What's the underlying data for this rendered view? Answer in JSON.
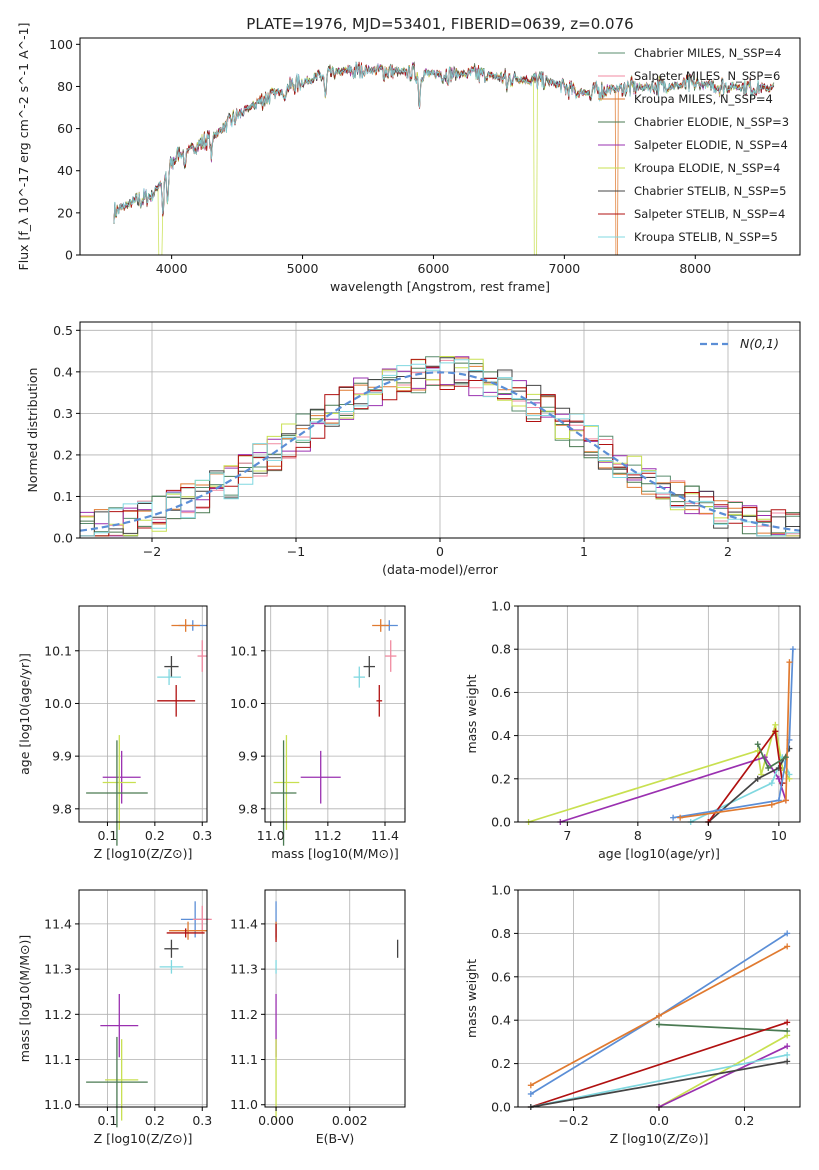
{
  "title": "PLATE=1976, MJD=53401, FIBERID=0639, z=0.076",
  "palette": {
    "Chabrier MILES": "#5a8c6e",
    "Salpeter MILES": "#f08aa0",
    "Kroupa MILES": "#e07a30",
    "Chabrier ELODIE": "#4a7a52",
    "Salpeter ELODIE": "#9a30b0",
    "Kroupa ELODIE": "#c8e050",
    "Chabrier STELIB": "#444444",
    "Salpeter STELIB": "#b01010",
    "Kroupa STELIB": "#80d8e0",
    "blue": "#5b8ed6"
  },
  "chart_data": [
    {
      "type": "line",
      "id": "spectrum",
      "xlabel": "wavelength [Angstrom, rest frame]",
      "ylabel": "Flux [f_λ 10^-17 erg cm^-2 s^-1 A^-1]",
      "xlim": [
        3300,
        8800
      ],
      "ylim": [
        0,
        103
      ],
      "xticks": [
        4000,
        5000,
        6000,
        7000,
        8000
      ],
      "yticks": [
        0,
        20,
        40,
        60,
        80,
        100
      ],
      "legend": [
        {
          "label": "Chabrier MILES, N_SSP=4",
          "color": "#5a8c6e"
        },
        {
          "label": "Salpeter MILES, N_SSP=6",
          "color": "#f08aa0"
        },
        {
          "label": "Kroupa MILES, N_SSP=4",
          "color": "#e07a30"
        },
        {
          "label": "Chabrier ELODIE, N_SSP=3",
          "color": "#4a7a52"
        },
        {
          "label": "Salpeter ELODIE, N_SSP=4",
          "color": "#9a30b0"
        },
        {
          "label": "Kroupa ELODIE, N_SSP=4",
          "color": "#c8e050"
        },
        {
          "label": "Chabrier STELIB, N_SSP=5",
          "color": "#444444"
        },
        {
          "label": "Salpeter STELIB, N_SSP=4",
          "color": "#b01010"
        },
        {
          "label": "Kroupa STELIB, N_SSP=5",
          "color": "#80d8e0"
        }
      ],
      "legend_position": "top-right",
      "continuum": [
        [
          3550,
          20
        ],
        [
          3700,
          25
        ],
        [
          3850,
          28
        ],
        [
          3950,
          38
        ],
        [
          4050,
          48
        ],
        [
          4200,
          52
        ],
        [
          4350,
          58
        ],
        [
          4500,
          66
        ],
        [
          4700,
          74
        ],
        [
          4900,
          80
        ],
        [
          5100,
          84
        ],
        [
          5300,
          87
        ],
        [
          5500,
          88
        ],
        [
          5700,
          87
        ],
        [
          6000,
          86
        ],
        [
          6300,
          86
        ],
        [
          6600,
          84
        ],
        [
          6900,
          82
        ],
        [
          7100,
          77
        ],
        [
          7400,
          79
        ],
        [
          7700,
          80
        ],
        [
          8000,
          81
        ],
        [
          8300,
          80
        ],
        [
          8600,
          79
        ]
      ],
      "absorption_lines": [
        [
          3934,
          18
        ],
        [
          3969,
          16
        ],
        [
          4101,
          8
        ],
        [
          4304,
          10
        ],
        [
          4861,
          6
        ],
        [
          5175,
          12
        ],
        [
          5893,
          15
        ],
        [
          6563,
          5
        ],
        [
          7200,
          4
        ]
      ],
      "grid": false
    },
    {
      "type": "step",
      "id": "residual-hist",
      "xlabel": "(data-model)/error",
      "ylabel": "Normed distribution",
      "xlim": [
        -2.5,
        2.5
      ],
      "ylim": [
        0,
        0.52
      ],
      "xticks": [
        -2,
        -1,
        0,
        1,
        2
      ],
      "yticks": [
        0.0,
        0.1,
        0.2,
        0.3,
        0.4,
        0.5
      ],
      "reference_curve": {
        "label": "N(0,1)",
        "color": "#5b8ed6"
      },
      "legend_position": "top-right",
      "grid": true
    },
    {
      "type": "errorbar",
      "id": "age-vs-Z",
      "xlabel": "Z [log10(Z/Z⊙)]",
      "ylabel": "age [log10(age/yr)]",
      "xlim": [
        0.04,
        0.31
      ],
      "ylim": [
        9.775,
        10.185
      ],
      "xticks": [
        0.1,
        0.2,
        0.3
      ],
      "yticks": [
        9.8,
        9.9,
        10.0,
        10.1
      ],
      "points": [
        {
          "x": 0.28,
          "y": 10.148,
          "xe": 0.03,
          "ye": 0.01,
          "c": "#5b8ed6"
        },
        {
          "x": 0.265,
          "y": 10.148,
          "xe": 0.03,
          "ye": 0.012,
          "c": "#e07a30"
        },
        {
          "x": 0.3,
          "y": 10.09,
          "xe": 0.01,
          "ye": 0.03,
          "c": "#f08aa0"
        },
        {
          "x": 0.235,
          "y": 10.07,
          "xe": 0.015,
          "ye": 0.02,
          "c": "#444444"
        },
        {
          "x": 0.23,
          "y": 10.05,
          "xe": 0.025,
          "ye": 0.015,
          "c": "#80d8e0"
        },
        {
          "x": 0.245,
          "y": 10.005,
          "xe": 0.04,
          "ye": 0.03,
          "c": "#b01010"
        },
        {
          "x": 0.13,
          "y": 9.86,
          "xe": 0.04,
          "ye": 0.05,
          "c": "#9a30b0"
        },
        {
          "x": 0.125,
          "y": 9.85,
          "xe": 0.035,
          "ye": 0.09,
          "c": "#c8e050"
        },
        {
          "x": 0.12,
          "y": 9.83,
          "xe": 0.065,
          "ye": 0.1,
          "c": "#4a7a52"
        }
      ],
      "grid": true
    },
    {
      "type": "errorbar",
      "id": "age-vs-mass",
      "xlabel": "mass [log10(M/M⊙)]",
      "xlim": [
        10.98,
        11.47
      ],
      "ylim": [
        9.775,
        10.185
      ],
      "xticks": [
        11.0,
        11.2,
        11.4
      ],
      "yticks": [
        9.8,
        9.9,
        10.0,
        10.1
      ],
      "points": [
        {
          "x": 11.415,
          "y": 10.148,
          "xe": 0.03,
          "ye": 0.01,
          "c": "#5b8ed6"
        },
        {
          "x": 11.385,
          "y": 10.148,
          "xe": 0.03,
          "ye": 0.012,
          "c": "#e07a30"
        },
        {
          "x": 11.42,
          "y": 10.09,
          "xe": 0.02,
          "ye": 0.03,
          "c": "#f08aa0"
        },
        {
          "x": 11.345,
          "y": 10.07,
          "xe": 0.02,
          "ye": 0.02,
          "c": "#444444"
        },
        {
          "x": 11.31,
          "y": 10.05,
          "xe": 0.02,
          "ye": 0.02,
          "c": "#80d8e0"
        },
        {
          "x": 11.38,
          "y": 10.005,
          "xe": 0.01,
          "ye": 0.03,
          "c": "#b01010"
        },
        {
          "x": 11.175,
          "y": 9.86,
          "xe": 0.07,
          "ye": 0.05,
          "c": "#9a30b0"
        },
        {
          "x": 11.055,
          "y": 9.85,
          "xe": 0.045,
          "ye": 0.09,
          "c": "#c8e050"
        },
        {
          "x": 11.045,
          "y": 9.83,
          "xe": 0.045,
          "ye": 0.1,
          "c": "#4a7a52"
        }
      ],
      "grid": true
    },
    {
      "type": "line",
      "id": "mass-weight-vs-age",
      "xlabel": "age [log10(age/yr)]",
      "ylabel": "mass weight",
      "xlim": [
        6.3,
        10.3
      ],
      "ylim": [
        0,
        1.0
      ],
      "xticks": [
        7,
        8,
        9,
        10
      ],
      "yticks": [
        0.0,
        0.2,
        0.4,
        0.6,
        0.8,
        1.0
      ],
      "series": [
        {
          "c": "#c8e050",
          "x": [
            6.45,
            9.7,
            9.75,
            9.95,
            10.05,
            10.15
          ],
          "y": [
            0.0,
            0.33,
            0.22,
            0.45,
            0.25,
            0.2
          ]
        },
        {
          "c": "#9a30b0",
          "x": [
            6.9,
            9.8,
            10.0,
            10.1
          ],
          "y": [
            0.0,
            0.3,
            0.2,
            0.1
          ]
        },
        {
          "c": "#80d8e0",
          "x": [
            8.75,
            9.9,
            10.05,
            10.15
          ],
          "y": [
            0.0,
            0.18,
            0.3,
            0.22
          ]
        },
        {
          "c": "#444444",
          "x": [
            9.0,
            9.7,
            10.0,
            10.15
          ],
          "y": [
            0.0,
            0.2,
            0.25,
            0.34
          ]
        },
        {
          "c": "#b01010",
          "x": [
            9.0,
            9.95,
            10.05
          ],
          "y": [
            0.0,
            0.42,
            0.18
          ]
        },
        {
          "c": "#5b8ed6",
          "x": [
            8.5,
            10.0,
            10.15,
            10.2
          ],
          "y": [
            0.02,
            0.1,
            0.38,
            0.8
          ]
        },
        {
          "c": "#e07a30",
          "x": [
            8.6,
            9.9,
            10.1,
            10.15
          ],
          "y": [
            0.02,
            0.08,
            0.1,
            0.74
          ]
        },
        {
          "c": "#4a7a52",
          "x": [
            9.7,
            9.85,
            10.1
          ],
          "y": [
            0.36,
            0.25,
            0.3
          ]
        }
      ],
      "grid": true
    },
    {
      "type": "errorbar",
      "id": "mass-vs-Z",
      "xlabel": "Z [log10(Z/Z⊙)]",
      "ylabel": "mass [log10(M/M⊙)]",
      "xlim": [
        0.04,
        0.31
      ],
      "ylim": [
        10.995,
        11.475
      ],
      "xticks": [
        0.1,
        0.2,
        0.3
      ],
      "yticks": [
        11.0,
        11.1,
        11.2,
        11.3,
        11.4
      ],
      "points": [
        {
          "x": 0.285,
          "y": 11.41,
          "xe": 0.03,
          "ye": 0.04,
          "c": "#5b8ed6"
        },
        {
          "x": 0.3,
          "y": 11.41,
          "xe": 0.02,
          "ye": 0.03,
          "c": "#f08aa0"
        },
        {
          "x": 0.27,
          "y": 11.385,
          "xe": 0.04,
          "ye": 0.02,
          "c": "#e07a30"
        },
        {
          "x": 0.265,
          "y": 11.38,
          "xe": 0.04,
          "ye": 0.01,
          "c": "#b01010"
        },
        {
          "x": 0.235,
          "y": 11.345,
          "xe": 0.015,
          "ye": 0.02,
          "c": "#444444"
        },
        {
          "x": 0.235,
          "y": 11.305,
          "xe": 0.025,
          "ye": 0.015,
          "c": "#80d8e0"
        },
        {
          "x": 0.125,
          "y": 11.175,
          "xe": 0.04,
          "ye": 0.07,
          "c": "#9a30b0"
        },
        {
          "x": 0.13,
          "y": 11.055,
          "xe": 0.035,
          "ye": 0.09,
          "c": "#c8e050"
        },
        {
          "x": 0.12,
          "y": 11.05,
          "xe": 0.065,
          "ye": 0.1,
          "c": "#4a7a52"
        }
      ],
      "grid": true
    },
    {
      "type": "errorbar",
      "id": "mass-vs-ebv",
      "xlabel": "E(B-V)",
      "xlim": [
        -0.0003,
        0.0035
      ],
      "ylim": [
        10.995,
        11.475
      ],
      "xticks": [
        0.0,
        0.002
      ],
      "yticks": [
        11.0,
        11.1,
        11.2,
        11.3,
        11.4
      ],
      "points": [
        {
          "x": 0.0,
          "y": 11.41,
          "xe": 0,
          "ye": 0.04,
          "c": "#5b8ed6"
        },
        {
          "x": 0.0,
          "y": 11.385,
          "xe": 0,
          "ye": 0.02,
          "c": "#e07a30"
        },
        {
          "x": 0.0,
          "y": 11.38,
          "xe": 0,
          "ye": 0.02,
          "c": "#b01010"
        },
        {
          "x": 0.0,
          "y": 11.305,
          "xe": 0,
          "ye": 0.015,
          "c": "#80d8e0"
        },
        {
          "x": 0.0,
          "y": 11.175,
          "xe": 0,
          "ye": 0.07,
          "c": "#9a30b0"
        },
        {
          "x": 0.0,
          "y": 11.055,
          "xe": 0,
          "ye": 0.09,
          "c": "#c8e050"
        },
        {
          "x": 0.0033,
          "y": 11.345,
          "xe": 0,
          "ye": 0.02,
          "c": "#444444"
        }
      ],
      "grid": true
    },
    {
      "type": "line",
      "id": "mass-weight-vs-Z",
      "xlabel": "Z [log10(Z/Z⊙)]",
      "ylabel": "mass weight",
      "xlim": [
        -0.33,
        0.33
      ],
      "ylim": [
        0,
        1.0
      ],
      "xticks": [
        -0.2,
        0.0,
        0.2
      ],
      "yticks": [
        0.0,
        0.2,
        0.4,
        0.6,
        0.8,
        1.0
      ],
      "series": [
        {
          "c": "#5b8ed6",
          "x": [
            -0.3,
            0.0,
            0.3
          ],
          "y": [
            0.06,
            0.42,
            0.8
          ]
        },
        {
          "c": "#e07a30",
          "x": [
            -0.3,
            0.0,
            0.3
          ],
          "y": [
            0.1,
            0.42,
            0.74
          ]
        },
        {
          "c": "#4a7a52",
          "x": [
            0.0,
            0.3
          ],
          "y": [
            0.38,
            0.35
          ]
        },
        {
          "c": "#b01010",
          "x": [
            -0.3,
            0.3
          ],
          "y": [
            0.0,
            0.39
          ]
        },
        {
          "c": "#c8e050",
          "x": [
            0.0,
            0.3
          ],
          "y": [
            0.0,
            0.33
          ]
        },
        {
          "c": "#9a30b0",
          "x": [
            0.0,
            0.3
          ],
          "y": [
            0.0,
            0.28
          ]
        },
        {
          "c": "#80d8e0",
          "x": [
            -0.3,
            0.3
          ],
          "y": [
            0.0,
            0.24
          ]
        },
        {
          "c": "#444444",
          "x": [
            -0.3,
            0.3
          ],
          "y": [
            0.0,
            0.21
          ]
        }
      ],
      "grid": true
    }
  ]
}
